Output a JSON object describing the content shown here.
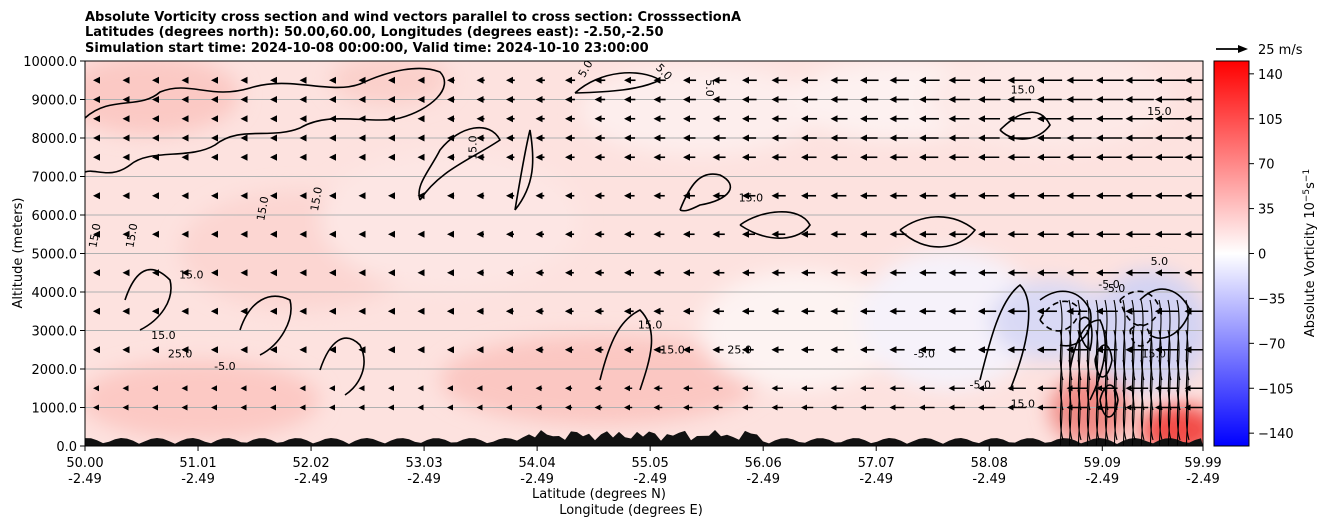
{
  "chart_data": {
    "type": "contour",
    "title_lines": [
      "Absolute Vorticity cross section and wind vectors parallel to cross section: CrosssectionA",
      "Latitudes (degrees north): 50.00,60.00, Longitudes (degrees east): -2.50,-2.50",
      "Simulation start time: 2024-10-08 00:00:00, Valid time: 2024-10-10 23:00:00"
    ],
    "ylabel": "Altitude (meters)",
    "xlabel_line1": "Latitude (degrees N)",
    "xlabel_line2": "Longitude (degrees E)",
    "xlim": [
      50.0,
      59.99
    ],
    "ylim": [
      0,
      10000
    ],
    "x_ticks": [
      {
        "lat": "50.00",
        "lon": "-2.49",
        "value": 50.0
      },
      {
        "lat": "51.01",
        "lon": "-2.49",
        "value": 51.01
      },
      {
        "lat": "52.02",
        "lon": "-2.49",
        "value": 52.02
      },
      {
        "lat": "53.03",
        "lon": "-2.49",
        "value": 53.03
      },
      {
        "lat": "54.04",
        "lon": "-2.49",
        "value": 54.04
      },
      {
        "lat": "55.05",
        "lon": "-2.49",
        "value": 55.05
      },
      {
        "lat": "56.06",
        "lon": "-2.49",
        "value": 56.06
      },
      {
        "lat": "57.07",
        "lon": "-2.49",
        "value": 57.07
      },
      {
        "lat": "58.08",
        "lon": "-2.49",
        "value": 58.08
      },
      {
        "lat": "59.09",
        "lon": "-2.49",
        "value": 59.09
      },
      {
        "lat": "59.99",
        "lon": "-2.49",
        "value": 59.99
      }
    ],
    "y_ticks": [
      {
        "label": "0.0",
        "value": 0
      },
      {
        "label": "1000.0",
        "value": 1000
      },
      {
        "label": "2000.0",
        "value": 2000
      },
      {
        "label": "3000.0",
        "value": 3000
      },
      {
        "label": "4000.0",
        "value": 4000
      },
      {
        "label": "5000.0",
        "value": 5000
      },
      {
        "label": "6000.0",
        "value": 6000
      },
      {
        "label": "7000.0",
        "value": 7000
      },
      {
        "label": "8000.0",
        "value": 8000
      },
      {
        "label": "9000.0",
        "value": 9000
      },
      {
        "label": "10000.0",
        "value": 10000
      }
    ],
    "grid": "horizontal",
    "colorbar": {
      "label": "Absolute Vorticity 10$^{-5}$s$^{-1}$",
      "label_main": "Absolute Vorticity 10",
      "label_exp1": "−5",
      "label_s": "s",
      "label_exp2": "−1",
      "range": [
        -150,
        150
      ],
      "cmap": "bwr",
      "color_low": "#0000ff",
      "color_mid": "#ffffff",
      "color_high": "#ff0000",
      "ticks": [
        {
          "label": "140",
          "value": 140
        },
        {
          "label": "105",
          "value": 105
        },
        {
          "label": "70",
          "value": 70
        },
        {
          "label": "35",
          "value": 35
        },
        {
          "label": "0",
          "value": 0
        },
        {
          "label": "−35",
          "value": -35
        },
        {
          "label": "−70",
          "value": -70
        },
        {
          "label": "−105",
          "value": -105
        },
        {
          "label": "−140",
          "value": -140
        }
      ]
    },
    "quiver_key": {
      "label": "25 m/s",
      "speed": 25
    },
    "contour_levels_labeled": [
      "-5.0",
      "5.0",
      "15.0",
      "25.0"
    ],
    "contour_labels": [
      {
        "text": "15.0",
        "lat": 50.12,
        "alt": 5450,
        "angle": -80
      },
      {
        "text": "15.0",
        "lat": 50.45,
        "alt": 5450,
        "angle": -80
      },
      {
        "text": "15.0",
        "lat": 50.95,
        "alt": 4350,
        "angle": 0
      },
      {
        "text": "15.0",
        "lat": 50.7,
        "alt": 2780,
        "angle": 0
      },
      {
        "text": "25.0",
        "lat": 50.85,
        "alt": 2300,
        "angle": 0
      },
      {
        "text": "-5.0",
        "lat": 51.25,
        "alt": 1970,
        "angle": 0
      },
      {
        "text": "15.0",
        "lat": 51.62,
        "alt": 6150,
        "angle": -80
      },
      {
        "text": "15.0",
        "lat": 52.1,
        "alt": 6400,
        "angle": -80
      },
      {
        "text": "15.0",
        "lat": 53.5,
        "alt": 7750,
        "angle": -90
      },
      {
        "text": "5.0",
        "lat": 54.5,
        "alt": 9750,
        "angle": -60
      },
      {
        "text": "5.0",
        "lat": 55.15,
        "alt": 9650,
        "angle": 45
      },
      {
        "text": "5.0",
        "lat": 55.55,
        "alt": 9300,
        "angle": 90
      },
      {
        "text": "15.0",
        "lat": 55.95,
        "alt": 6350,
        "angle": 0
      },
      {
        "text": "15.0",
        "lat": 55.05,
        "alt": 3050,
        "angle": 0
      },
      {
        "text": "15.0",
        "lat": 55.25,
        "alt": 2400,
        "angle": 0
      },
      {
        "text": "25.0",
        "lat": 55.85,
        "alt": 2400,
        "angle": 0
      },
      {
        "text": "15.0",
        "lat": 58.38,
        "alt": 9150,
        "angle": 0
      },
      {
        "text": "15.0",
        "lat": 59.6,
        "alt": 8600,
        "angle": 0
      },
      {
        "text": "-5.0",
        "lat": 59.2,
        "alt": 4000,
        "angle": 0
      },
      {
        "text": "-5.0",
        "lat": 59.15,
        "alt": 4100,
        "angle": 0
      },
      {
        "text": "5.0",
        "lat": 59.6,
        "alt": 4700,
        "angle": 0
      },
      {
        "text": "-5.0",
        "lat": 58.0,
        "alt": 1500,
        "angle": 0
      },
      {
        "text": "15.0",
        "lat": 58.38,
        "alt": 1000,
        "angle": 0
      },
      {
        "text": "15.0",
        "lat": 59.55,
        "alt": 2300,
        "angle": 0
      },
      {
        "text": "-5.0",
        "lat": 57.5,
        "alt": 2300,
        "angle": 0
      }
    ]
  }
}
